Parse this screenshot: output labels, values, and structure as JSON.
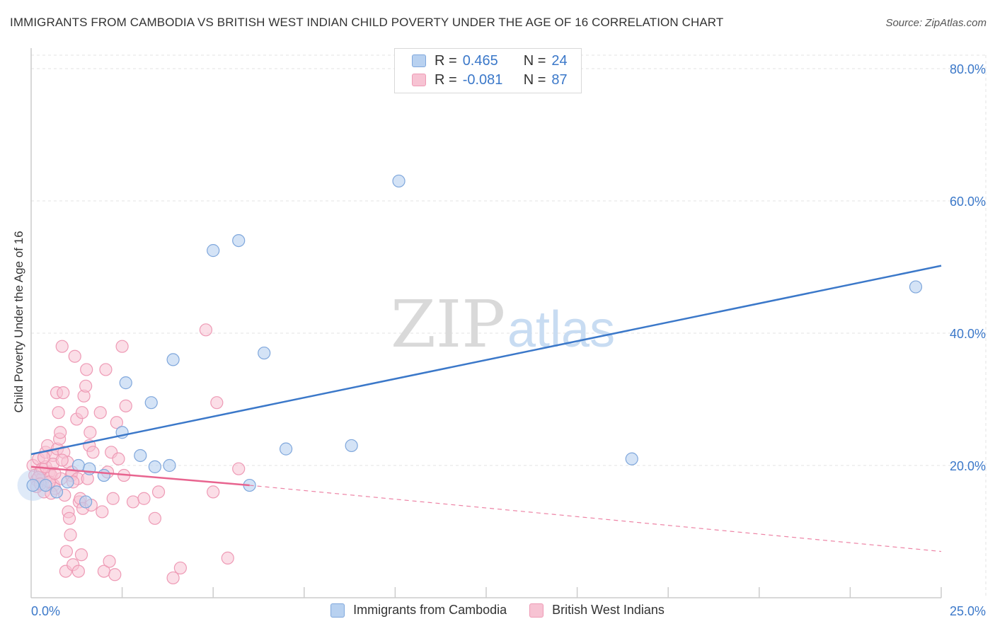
{
  "title": "IMMIGRANTS FROM CAMBODIA VS BRITISH WEST INDIAN CHILD POVERTY UNDER THE AGE OF 16 CORRELATION CHART",
  "source": "Source: ZipAtlas.com",
  "watermark": {
    "zip": "ZIP",
    "atlas": "atlas"
  },
  "legend": {
    "rows": [
      {
        "r_label": "R =",
        "r_value": "0.465",
        "n_label": "N =",
        "n_value": "24"
      },
      {
        "r_label": "R =",
        "r_value": "-0.081",
        "n_label": "N =",
        "n_value": "87"
      }
    ]
  },
  "bottom_legend": [
    "Immigrants from Cambodia",
    "British West Indians"
  ],
  "colors": {
    "blue": "#3b78c9",
    "blue_fill": "#b8d1f0",
    "blue_stroke": "#7fa7dc",
    "pink": "#e8648f",
    "pink_fill": "#f7c3d3",
    "pink_stroke": "#ee9ab5",
    "grid": "#e3e3e3",
    "tick_label": "#3b78c9"
  },
  "chart_data": {
    "type": "scatter",
    "title": "IMMIGRANTS FROM CAMBODIA VS BRITISH WEST INDIAN CHILD POVERTY UNDER THE AGE OF 16 CORRELATION CHART",
    "xlabel": "",
    "ylabel": "Child Poverty Under the Age of 16",
    "xlim": [
      0,
      25
    ],
    "ylim": [
      0,
      80
    ],
    "x_tick_labels": [
      "0.0%",
      "25.0%"
    ],
    "y_ticks": [
      20,
      40,
      60,
      80
    ],
    "y_tick_labels": [
      "20.0%",
      "40.0%",
      "60.0%",
      "80.0%"
    ],
    "series": [
      {
        "name": "Immigrants from Cambodia",
        "color": "blue",
        "points": [
          [
            0.05,
            17.0
          ],
          [
            0.4,
            17.0
          ],
          [
            0.7,
            16.0
          ],
          [
            1.0,
            17.5
          ],
          [
            1.3,
            20.0
          ],
          [
            1.6,
            19.5
          ],
          [
            1.5,
            14.5
          ],
          [
            2.0,
            18.5
          ],
          [
            2.5,
            25.0
          ],
          [
            2.6,
            32.5
          ],
          [
            3.0,
            21.5
          ],
          [
            3.3,
            29.5
          ],
          [
            3.4,
            19.8
          ],
          [
            3.8,
            20.0
          ],
          [
            3.9,
            36.0
          ],
          [
            5.0,
            52.5
          ],
          [
            5.7,
            54.0
          ],
          [
            6.0,
            17.0
          ],
          [
            6.4,
            37.0
          ],
          [
            7.0,
            22.5
          ],
          [
            8.8,
            23.0
          ],
          [
            10.1,
            63.0
          ],
          [
            16.5,
            21.0
          ],
          [
            24.3,
            47.0
          ]
        ],
        "trend": {
          "x0": 0,
          "y0": 21.7,
          "x1": 25,
          "y1": 50.2
        }
      },
      {
        "name": "British West Indians",
        "color": "pink",
        "points": [
          [
            0.05,
            20.0
          ],
          [
            0.1,
            18.5
          ],
          [
            0.15,
            17.8
          ],
          [
            0.2,
            21.0
          ],
          [
            0.25,
            19.0
          ],
          [
            0.3,
            18.0
          ],
          [
            0.35,
            16.0
          ],
          [
            0.4,
            22.0
          ],
          [
            0.45,
            23.0
          ],
          [
            0.5,
            19.0
          ],
          [
            0.55,
            18.5
          ],
          [
            0.6,
            21.5
          ],
          [
            0.62,
            17.0
          ],
          [
            0.65,
            16.5
          ],
          [
            0.7,
            31.0
          ],
          [
            0.72,
            22.5
          ],
          [
            0.75,
            28.0
          ],
          [
            0.78,
            24.0
          ],
          [
            0.8,
            25.0
          ],
          [
            0.82,
            18.0
          ],
          [
            0.85,
            38.0
          ],
          [
            0.88,
            31.0
          ],
          [
            0.9,
            22.0
          ],
          [
            0.92,
            15.5
          ],
          [
            0.95,
            4.0
          ],
          [
            0.97,
            7.0
          ],
          [
            1.0,
            20.5
          ],
          [
            1.02,
            13.0
          ],
          [
            1.05,
            12.0
          ],
          [
            1.08,
            9.5
          ],
          [
            1.1,
            18.5
          ],
          [
            1.12,
            19.0
          ],
          [
            1.15,
            5.0
          ],
          [
            1.2,
            36.5
          ],
          [
            1.25,
            27.0
          ],
          [
            1.28,
            18.0
          ],
          [
            1.3,
            4.0
          ],
          [
            1.32,
            14.5
          ],
          [
            1.35,
            15.0
          ],
          [
            1.38,
            6.5
          ],
          [
            1.4,
            28.0
          ],
          [
            1.42,
            13.5
          ],
          [
            1.45,
            30.5
          ],
          [
            1.5,
            32.0
          ],
          [
            1.52,
            34.5
          ],
          [
            1.55,
            18.0
          ],
          [
            1.6,
            23.0
          ],
          [
            1.62,
            25.0
          ],
          [
            1.65,
            14.0
          ],
          [
            1.7,
            22.0
          ],
          [
            1.9,
            28.0
          ],
          [
            1.95,
            13.0
          ],
          [
            2.0,
            4.0
          ],
          [
            2.05,
            34.5
          ],
          [
            2.1,
            19.0
          ],
          [
            2.15,
            5.5
          ],
          [
            2.2,
            22.0
          ],
          [
            2.25,
            15.0
          ],
          [
            2.3,
            3.5
          ],
          [
            2.35,
            26.5
          ],
          [
            2.4,
            21.0
          ],
          [
            2.5,
            38.0
          ],
          [
            2.55,
            18.5
          ],
          [
            2.6,
            29.0
          ],
          [
            2.8,
            14.5
          ],
          [
            3.1,
            15.0
          ],
          [
            3.4,
            12.0
          ],
          [
            3.5,
            16.0
          ],
          [
            3.9,
            3.0
          ],
          [
            4.1,
            4.5
          ],
          [
            4.8,
            40.5
          ],
          [
            5.0,
            16.0
          ],
          [
            5.1,
            29.5
          ],
          [
            5.4,
            6.0
          ],
          [
            5.7,
            19.5
          ],
          [
            0.3,
            19.5
          ],
          [
            0.5,
            17.5
          ],
          [
            0.2,
            18.2
          ],
          [
            0.4,
            19.8
          ],
          [
            0.6,
            20.2
          ],
          [
            0.15,
            16.8
          ],
          [
            0.35,
            21.2
          ],
          [
            0.55,
            15.8
          ],
          [
            1.15,
            17.5
          ],
          [
            0.85,
            20.8
          ],
          [
            0.65,
            18.8
          ],
          [
            0.25,
            17.2
          ]
        ],
        "trend": {
          "x0": 0,
          "y0": 19.8,
          "x1": 6.0,
          "y1": 17.0
        },
        "trend_extension": {
          "x0": 6.0,
          "y0": 17.0,
          "x1": 25,
          "y1": 7.0
        }
      }
    ]
  }
}
